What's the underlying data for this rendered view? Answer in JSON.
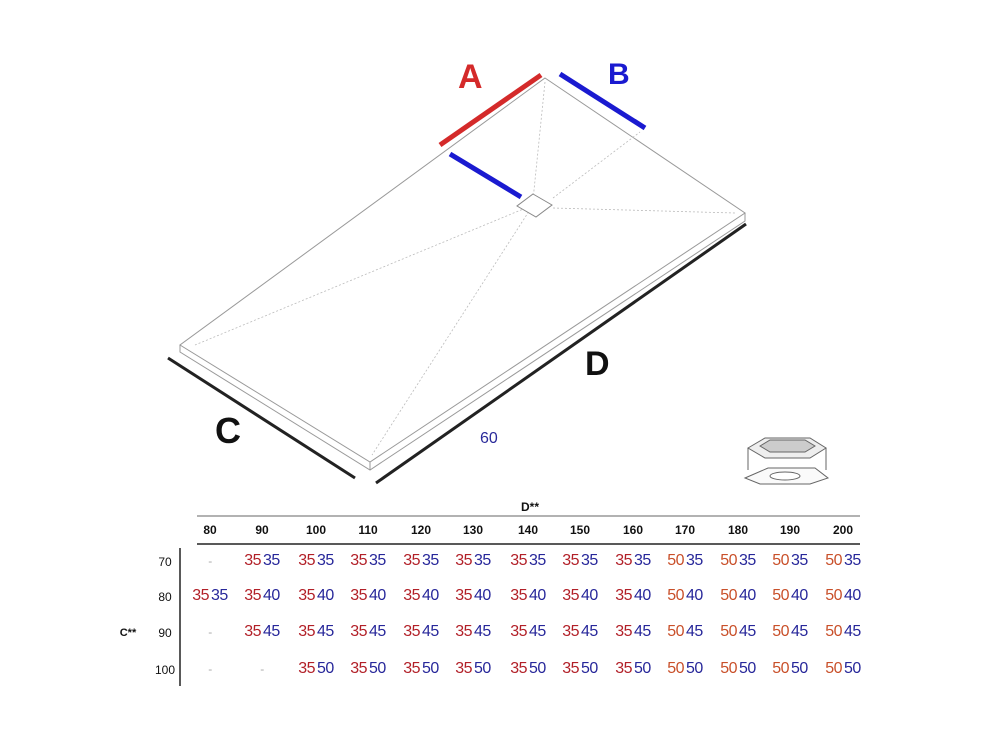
{
  "labels": {
    "a": "A",
    "b": "B",
    "c": "C",
    "d": "D",
    "note": "60"
  },
  "colors": {
    "a": "#d42a2a",
    "b": "#1a1ad0",
    "a35": "#b22028",
    "a50": "#c9502a",
    "values_b": "#27279a"
  },
  "table": {
    "col_title": "D**",
    "row_title": "C**",
    "columns": [
      "80",
      "90",
      "100",
      "110",
      "120",
      "130",
      "140",
      "150",
      "160",
      "170",
      "180",
      "190",
      "200"
    ],
    "rows": [
      {
        "c": "70",
        "cells": [
          [
            "-"
          ],
          [
            "35",
            "35"
          ],
          [
            "35",
            "35"
          ],
          [
            "35",
            "35"
          ],
          [
            "35",
            "35"
          ],
          [
            "35",
            "35"
          ],
          [
            "35",
            "35"
          ],
          [
            "35",
            "35"
          ],
          [
            "35",
            "35"
          ],
          [
            "50",
            "35"
          ],
          [
            "50",
            "35"
          ],
          [
            "50",
            "35"
          ],
          [
            "50",
            "35"
          ]
        ]
      },
      {
        "c": "80",
        "cells": [
          [
            "35",
            "35"
          ],
          [
            "35",
            "40"
          ],
          [
            "35",
            "40"
          ],
          [
            "35",
            "40"
          ],
          [
            "35",
            "40"
          ],
          [
            "35",
            "40"
          ],
          [
            "35",
            "40"
          ],
          [
            "35",
            "40"
          ],
          [
            "35",
            "40"
          ],
          [
            "50",
            "40"
          ],
          [
            "50",
            "40"
          ],
          [
            "50",
            "40"
          ],
          [
            "50",
            "40"
          ]
        ]
      },
      {
        "c": "90",
        "cells": [
          [
            "-"
          ],
          [
            "35",
            "45"
          ],
          [
            "35",
            "45"
          ],
          [
            "35",
            "45"
          ],
          [
            "35",
            "45"
          ],
          [
            "35",
            "45"
          ],
          [
            "35",
            "45"
          ],
          [
            "35",
            "45"
          ],
          [
            "35",
            "45"
          ],
          [
            "50",
            "45"
          ],
          [
            "50",
            "45"
          ],
          [
            "50",
            "45"
          ],
          [
            "50",
            "45"
          ]
        ]
      },
      {
        "c": "100",
        "cells": [
          [
            "-"
          ],
          [
            "-"
          ],
          [
            "35",
            "50"
          ],
          [
            "35",
            "50"
          ],
          [
            "35",
            "50"
          ],
          [
            "35",
            "50"
          ],
          [
            "35",
            "50"
          ],
          [
            "35",
            "50"
          ],
          [
            "35",
            "50"
          ],
          [
            "50",
            "50"
          ],
          [
            "50",
            "50"
          ],
          [
            "50",
            "50"
          ],
          [
            "50",
            "50"
          ]
        ]
      }
    ]
  }
}
